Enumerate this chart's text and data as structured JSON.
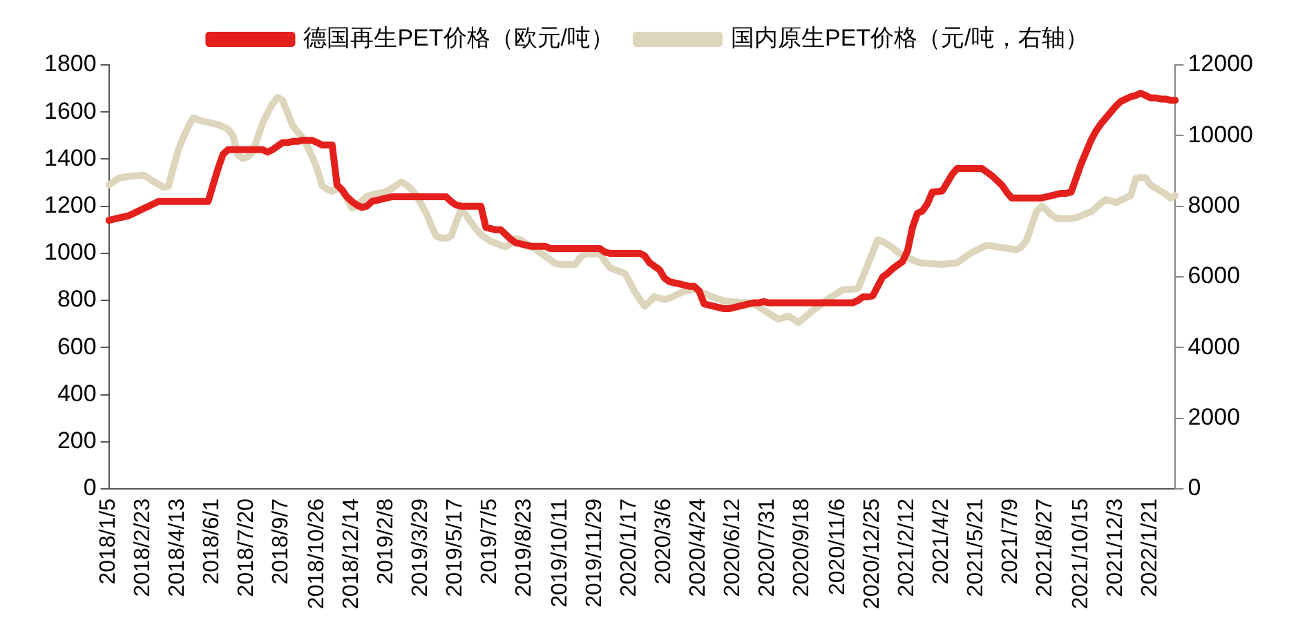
{
  "chart_data": {
    "type": "line",
    "legend": "top",
    "grid": false,
    "marker": "none",
    "line_style": "solid",
    "categories": [
      "2018/1/5",
      null,
      null,
      null,
      null,
      null,
      null,
      "2018/2/23",
      null,
      null,
      null,
      null,
      null,
      null,
      "2018/4/13",
      null,
      null,
      null,
      null,
      null,
      null,
      "2018/6/1",
      null,
      null,
      null,
      null,
      null,
      null,
      "2018/7/20",
      null,
      null,
      null,
      null,
      null,
      null,
      "2018/9/7",
      null,
      null,
      null,
      null,
      null,
      null,
      "2018/10/26",
      null,
      null,
      null,
      null,
      null,
      null,
      "2018/12/14",
      null,
      null,
      null,
      null,
      null,
      null,
      "2019/2/8",
      null,
      null,
      null,
      null,
      null,
      null,
      "2019/3/29",
      null,
      null,
      null,
      null,
      null,
      null,
      "2019/5/17",
      null,
      null,
      null,
      null,
      null,
      null,
      "2019/7/5",
      null,
      null,
      null,
      null,
      null,
      null,
      "2019/8/23",
      null,
      null,
      null,
      null,
      null,
      null,
      "2019/10/11",
      null,
      null,
      null,
      null,
      null,
      null,
      "2019/11/29",
      null,
      null,
      null,
      null,
      null,
      null,
      "2020/1/17",
      null,
      null,
      null,
      null,
      null,
      null,
      "2020/3/6",
      null,
      null,
      null,
      null,
      null,
      null,
      "2020/4/24",
      null,
      null,
      null,
      null,
      null,
      null,
      "2020/6/12",
      null,
      null,
      null,
      null,
      null,
      null,
      "2020/7/31",
      null,
      null,
      null,
      null,
      null,
      null,
      "2020/9/18",
      null,
      null,
      null,
      null,
      null,
      null,
      "2020/11/6",
      null,
      null,
      null,
      null,
      null,
      null,
      "2020/12/25",
      null,
      null,
      null,
      null,
      null,
      null,
      "2021/2/12",
      null,
      null,
      null,
      null,
      null,
      null,
      "2021/4/2",
      null,
      null,
      null,
      null,
      null,
      null,
      "2021/5/21",
      null,
      null,
      null,
      null,
      null,
      null,
      "2021/7/9",
      null,
      null,
      null,
      null,
      null,
      null,
      "2021/8/27",
      null,
      null,
      null,
      null,
      null,
      null,
      "2021/10/15",
      null,
      null,
      null,
      null,
      null,
      null,
      "2021/12/3",
      null,
      null,
      null,
      null,
      null,
      null,
      "2022/1/21",
      null,
      null,
      null,
      null,
      null
    ],
    "ylim": [
      0,
      1800
    ],
    "yticks": [
      0,
      200,
      400,
      600,
      800,
      1000,
      1200,
      1400,
      1600,
      1800
    ],
    "y2lim": [
      0,
      12000
    ],
    "y2ticks": [
      0,
      2000,
      4000,
      6000,
      8000,
      10000,
      12000
    ],
    "series": [
      {
        "name": "德国再生PET价格（欧元/吨）",
        "color": "#e3201b",
        "values": [
          1140,
          1145,
          1150,
          1155,
          1160,
          1170,
          1180,
          1190,
          1200,
          1210,
          1220,
          1220,
          1220,
          1220,
          1220,
          1220,
          1220,
          1220,
          1220,
          1220,
          1220,
          1290,
          1360,
          1420,
          1440,
          1440,
          1440,
          1440,
          1440,
          1440,
          1440,
          1440,
          1430,
          1440,
          1455,
          1470,
          1470,
          1475,
          1475,
          1480,
          1480,
          1480,
          1470,
          1460,
          1460,
          1460,
          1290,
          1270,
          1240,
          1220,
          1205,
          1195,
          1200,
          1220,
          1225,
          1230,
          1235,
          1240,
          1240,
          1240,
          1240,
          1240,
          1240,
          1240,
          1240,
          1240,
          1240,
          1240,
          1240,
          1220,
          1205,
          1200,
          1200,
          1200,
          1200,
          1200,
          1110,
          1105,
          1100,
          1100,
          1080,
          1060,
          1045,
          1040,
          1035,
          1030,
          1030,
          1030,
          1030,
          1020,
          1020,
          1020,
          1020,
          1020,
          1020,
          1020,
          1020,
          1020,
          1020,
          1020,
          1005,
          1000,
          1000,
          1000,
          1000,
          1000,
          1000,
          1000,
          990,
          960,
          945,
          930,
          895,
          880,
          875,
          870,
          865,
          860,
          860,
          840,
          785,
          780,
          775,
          770,
          765,
          765,
          770,
          775,
          780,
          785,
          790,
          790,
          795,
          790,
          790,
          790,
          790,
          790,
          790,
          790,
          790,
          790,
          790,
          790,
          790,
          790,
          790,
          790,
          790,
          790,
          790,
          800,
          815,
          815,
          820,
          860,
          900,
          915,
          935,
          950,
          965,
          1010,
          1110,
          1170,
          1180,
          1210,
          1260,
          1262,
          1265,
          1300,
          1335,
          1360,
          1360,
          1360,
          1360,
          1360,
          1360,
          1345,
          1330,
          1310,
          1290,
          1260,
          1235,
          1235,
          1235,
          1235,
          1235,
          1235,
          1235,
          1240,
          1245,
          1250,
          1255,
          1255,
          1260,
          1320,
          1380,
          1430,
          1480,
          1520,
          1550,
          1575,
          1600,
          1625,
          1645,
          1655,
          1665,
          1670,
          1680,
          1670,
          1660,
          1660,
          1655,
          1655,
          1650,
          1650
        ]
      },
      {
        "name": "国内原生PET价格（元/吨，右轴）",
        "color": "#ddd5bc",
        "axis": "y2",
        "values": [
          8600,
          8700,
          8800,
          8820,
          8840,
          8860,
          8870,
          8880,
          8800,
          8700,
          8620,
          8540,
          8560,
          9100,
          9600,
          9950,
          10250,
          10500,
          10450,
          10400,
          10380,
          10340,
          10310,
          10250,
          10180,
          10000,
          9450,
          9350,
          9400,
          9550,
          9950,
          10350,
          10650,
          10900,
          11080,
          11000,
          10650,
          10300,
          10100,
          9950,
          9700,
          9400,
          9050,
          8580,
          8480,
          8420,
          8500,
          8450,
          8200,
          7950,
          8000,
          8150,
          8280,
          8320,
          8350,
          8380,
          8420,
          8500,
          8600,
          8690,
          8600,
          8480,
          8300,
          8050,
          7800,
          7450,
          7150,
          7100,
          7100,
          7150,
          7550,
          7900,
          7750,
          7550,
          7350,
          7200,
          7100,
          7010,
          6950,
          6900,
          6850,
          6950,
          7080,
          7050,
          6950,
          6880,
          6780,
          6680,
          6580,
          6480,
          6380,
          6350,
          6350,
          6350,
          6350,
          6550,
          6650,
          6650,
          6650,
          6650,
          6450,
          6260,
          6200,
          6150,
          6100,
          5850,
          5580,
          5370,
          5170,
          5300,
          5440,
          5400,
          5360,
          5400,
          5460,
          5530,
          5590,
          5620,
          5650,
          5590,
          5530,
          5470,
          5420,
          5370,
          5320,
          5300,
          5290,
          5280,
          5270,
          5260,
          5240,
          5150,
          5060,
          4970,
          4880,
          4800,
          4850,
          4890,
          4800,
          4710,
          4820,
          4940,
          5060,
          5160,
          5260,
          5380,
          5460,
          5550,
          5640,
          5650,
          5650,
          5670,
          6000,
          6350,
          6700,
          7050,
          7000,
          6920,
          6820,
          6700,
          6610,
          6550,
          6480,
          6420,
          6390,
          6380,
          6370,
          6360,
          6350,
          6370,
          6380,
          6400,
          6500,
          6600,
          6690,
          6760,
          6830,
          6890,
          6880,
          6850,
          6830,
          6810,
          6790,
          6770,
          6850,
          7030,
          7450,
          7850,
          8000,
          7900,
          7750,
          7660,
          7650,
          7650,
          7650,
          7680,
          7730,
          7790,
          7840,
          7960,
          8090,
          8190,
          8150,
          8100,
          8170,
          8240,
          8300,
          8780,
          8820,
          8800,
          8600,
          8520,
          8430,
          8350,
          8230,
          8300
        ]
      }
    ]
  }
}
